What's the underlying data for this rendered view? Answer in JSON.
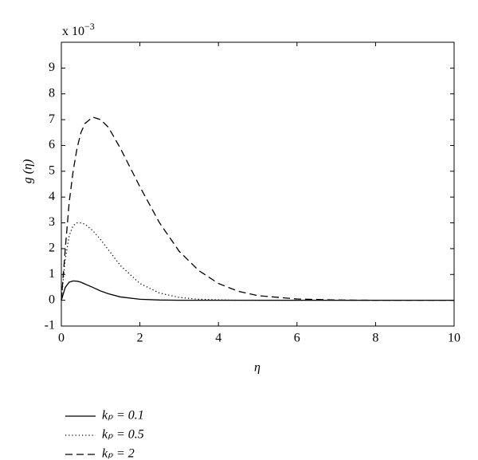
{
  "chart_data": {
    "type": "line",
    "y_multiplier": {
      "base": "x 10",
      "exponent": "−3"
    },
    "xlabel": "η",
    "ylabel": "g (η)",
    "x": [
      0,
      0.1,
      0.2,
      0.3,
      0.4,
      0.5,
      0.6,
      0.8,
      1,
      1.2,
      1.5,
      2,
      2.5,
      3,
      3.5,
      4,
      4.5,
      5,
      6,
      7,
      8,
      9,
      10
    ],
    "series": [
      {
        "name": "kₚ = 0.1",
        "color": "#000000",
        "dash": "solid",
        "values": [
          0,
          0.5,
          0.7,
          0.75,
          0.74,
          0.7,
          0.63,
          0.5,
          0.36,
          0.25,
          0.13,
          0.04,
          0.01,
          0,
          0,
          0,
          0,
          0,
          0,
          0,
          0,
          0,
          0
        ]
      },
      {
        "name": "kₚ = 0.5",
        "color": "#000000",
        "dash": "dotted",
        "values": [
          0,
          1.6,
          2.5,
          2.9,
          3.0,
          3.0,
          2.95,
          2.7,
          2.35,
          1.95,
          1.35,
          0.65,
          0.28,
          0.11,
          0.04,
          0.015,
          0,
          0,
          0,
          0,
          0,
          0,
          0
        ]
      },
      {
        "name": "kₚ = 2",
        "color": "#000000",
        "dash": "dashed",
        "values": [
          0,
          2.0,
          3.8,
          5.0,
          5.9,
          6.5,
          6.85,
          7.1,
          7.0,
          6.7,
          5.9,
          4.4,
          3.0,
          1.9,
          1.15,
          0.65,
          0.35,
          0.18,
          0.05,
          0.01,
          0,
          0,
          0
        ]
      }
    ],
    "xlim": [
      0,
      10
    ],
    "xticks": [
      0,
      2,
      4,
      6,
      8,
      10
    ],
    "ylim": [
      -1,
      10
    ],
    "yticks": [
      -1,
      0,
      1,
      2,
      3,
      4,
      5,
      6,
      7,
      8,
      9
    ],
    "legend": "bottom-left"
  }
}
